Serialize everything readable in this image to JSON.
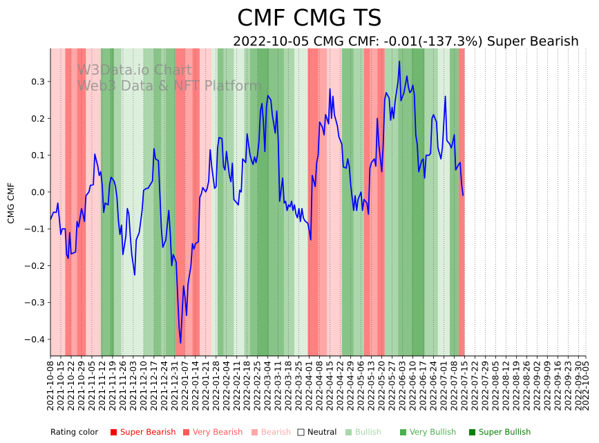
{
  "chart_data": {
    "type": "line",
    "title": "CMF CMG TS",
    "subtitle": "2022-10-05 CMG CMF: -0.01(-137.3%) Super Bearish",
    "ylabel": "CMG CMF",
    "watermark": [
      "W3Data.io Chart",
      "Web3 Data & NFT Platform"
    ],
    "ylim": [
      -0.445,
      0.39
    ],
    "yticks": [
      -0.4,
      -0.3,
      -0.2,
      -0.1,
      0.0,
      0.1,
      0.2,
      0.3
    ],
    "ytick_labels": [
      "−0.4",
      "−0.3",
      "−0.2",
      "−0.1",
      "0.0",
      "0.1",
      "0.2",
      "0.3"
    ],
    "x_start": "2021-10-08",
    "x_end": "2022-10-05",
    "xtick_labels": [
      "2021-10-08",
      "2021-10-15",
      "2021-10-22",
      "2021-10-29",
      "2021-11-05",
      "2021-11-12",
      "2021-11-19",
      "2021-11-26",
      "2021-12-03",
      "2021-12-10",
      "2021-12-17",
      "2021-12-24",
      "2021-12-31",
      "2022-01-07",
      "2022-01-14",
      "2022-01-21",
      "2022-01-28",
      "2022-02-04",
      "2022-02-11",
      "2022-02-18",
      "2022-02-25",
      "2022-03-04",
      "2022-03-11",
      "2022-03-18",
      "2022-03-25",
      "2022-04-01",
      "2022-04-08",
      "2022-04-15",
      "2022-04-22",
      "2022-04-29",
      "2022-05-06",
      "2022-05-13",
      "2022-05-20",
      "2022-05-27",
      "2022-06-03",
      "2022-06-10",
      "2022-06-17",
      "2022-06-24",
      "2022-07-01",
      "2022-07-08",
      "2022-07-15",
      "2022-07-22",
      "2022-07-29",
      "2022-08-05",
      "2022-08-12",
      "2022-08-19",
      "2022-08-26",
      "2022-09-02",
      "2022-09-09",
      "2022-09-16",
      "2022-09-23",
      "2022-09-30",
      "2022-10-05"
    ],
    "series": [
      {
        "name": "CMG CMF",
        "color": "#0000ff",
        "points": [
          [
            0,
            -0.075
          ],
          [
            2,
            -0.055
          ],
          [
            4,
            -0.055
          ],
          [
            5,
            -0.03
          ],
          [
            7,
            -0.115
          ],
          [
            8,
            -0.1
          ],
          [
            10,
            -0.1
          ],
          [
            11,
            -0.17
          ],
          [
            12,
            -0.18
          ],
          [
            13,
            -0.11
          ],
          [
            14,
            -0.168
          ],
          [
            17,
            -0.163
          ],
          [
            18,
            -0.08
          ],
          [
            19,
            -0.095
          ],
          [
            21,
            -0.045
          ],
          [
            22,
            -0.06
          ],
          [
            23,
            -0.08
          ],
          [
            24,
            -0.01
          ],
          [
            26,
            0.0
          ],
          [
            27,
            0.018
          ],
          [
            29,
            0.02
          ],
          [
            30,
            0.103
          ],
          [
            32,
            0.07
          ],
          [
            33,
            0.045
          ],
          [
            34,
            0.055
          ],
          [
            35,
            0.02
          ],
          [
            36,
            -0.055
          ],
          [
            37,
            -0.03
          ],
          [
            39,
            -0.035
          ],
          [
            40,
            0.02
          ],
          [
            41,
            0.04
          ],
          [
            43,
            0.03
          ],
          [
            44,
            0.015
          ],
          [
            45,
            -0.015
          ],
          [
            46,
            -0.08
          ],
          [
            47,
            -0.115
          ],
          [
            48,
            -0.09
          ],
          [
            49,
            -0.17
          ],
          [
            51,
            -0.12
          ],
          [
            52,
            -0.045
          ],
          [
            53,
            -0.06
          ],
          [
            54,
            -0.12
          ],
          [
            55,
            -0.17
          ],
          [
            57,
            -0.225
          ],
          [
            58,
            -0.13
          ],
          [
            60,
            -0.11
          ],
          [
            62,
            -0.05
          ],
          [
            63,
            0.005
          ],
          [
            65,
            0.01
          ],
          [
            66,
            0.01
          ],
          [
            69,
            0.03
          ],
          [
            70,
            0.118
          ],
          [
            71,
            0.09
          ],
          [
            73,
            0.085
          ],
          [
            75,
            -0.1
          ],
          [
            76,
            -0.15
          ],
          [
            78,
            -0.13
          ],
          [
            79,
            -0.09
          ],
          [
            80,
            -0.05
          ],
          [
            81,
            -0.11
          ],
          [
            82,
            -0.2
          ],
          [
            83,
            -0.17
          ],
          [
            85,
            -0.19
          ],
          [
            86,
            -0.28
          ],
          [
            87,
            -0.37
          ],
          [
            88,
            -0.41
          ],
          [
            90,
            -0.255
          ],
          [
            91,
            -0.285
          ],
          [
            92,
            -0.335
          ],
          [
            93,
            -0.25
          ],
          [
            95,
            -0.2
          ],
          [
            96,
            -0.14
          ],
          [
            97,
            -0.155
          ],
          [
            98,
            -0.14
          ],
          [
            100,
            -0.135
          ],
          [
            101,
            -0.015
          ],
          [
            102,
            -0.005
          ],
          [
            103,
            0.012
          ],
          [
            105,
            0.0
          ],
          [
            106,
            0.01
          ],
          [
            107,
            0.03
          ],
          [
            108,
            0.115
          ],
          [
            109,
            0.07
          ],
          [
            111,
            0.01
          ],
          [
            112,
            0.015
          ],
          [
            113,
            0.12
          ],
          [
            114,
            0.148
          ],
          [
            116,
            0.145
          ],
          [
            117,
            0.07
          ],
          [
            118,
            0.06
          ],
          [
            119,
            0.11
          ],
          [
            121,
            0.045
          ],
          [
            122,
            0.028
          ],
          [
            123,
            0.078
          ],
          [
            124,
            -0.02
          ],
          [
            126,
            -0.03
          ],
          [
            127,
            -0.035
          ],
          [
            128,
            0.005
          ],
          [
            129,
            0.0
          ],
          [
            130,
            0.09
          ],
          [
            132,
            0.08
          ],
          [
            133,
            0.158
          ],
          [
            135,
            0.1
          ],
          [
            136,
            0.085
          ],
          [
            137,
            0.075
          ],
          [
            138,
            0.095
          ],
          [
            139,
            0.08
          ],
          [
            140,
            0.1
          ],
          [
            141,
            0.14
          ],
          [
            142,
            0.22
          ],
          [
            143,
            0.24
          ],
          [
            144,
            0.19
          ],
          [
            145,
            0.11
          ],
          [
            146,
            0.23
          ],
          [
            147,
            0.262
          ],
          [
            149,
            0.25
          ],
          [
            150,
            0.21
          ],
          [
            152,
            0.16
          ],
          [
            153,
            0.22
          ],
          [
            154,
            0.14
          ],
          [
            155,
            -0.025
          ],
          [
            157,
            0.038
          ],
          [
            158,
            -0.03
          ],
          [
            159,
            -0.025
          ],
          [
            160,
            -0.05
          ],
          [
            161,
            -0.035
          ],
          [
            162,
            -0.04
          ],
          [
            163,
            -0.025
          ],
          [
            164,
            -0.05
          ],
          [
            165,
            -0.035
          ],
          [
            166,
            -0.06
          ],
          [
            167,
            -0.07
          ],
          [
            168,
            -0.045
          ],
          [
            169,
            -0.08
          ],
          [
            170,
            -0.045
          ],
          [
            171,
            -0.07
          ],
          [
            172,
            -0.078
          ],
          [
            174,
            -0.085
          ],
          [
            175,
            -0.105
          ],
          [
            176,
            -0.13
          ],
          [
            177,
            0.045
          ],
          [
            178,
            0.03
          ],
          [
            179,
            0.015
          ],
          [
            180,
            0.08
          ],
          [
            181,
            0.1
          ],
          [
            182,
            0.19
          ],
          [
            184,
            0.175
          ],
          [
            185,
            0.155
          ],
          [
            186,
            0.21
          ],
          [
            187,
            0.2
          ],
          [
            188,
            0.185
          ],
          [
            189,
            0.28
          ],
          [
            190,
            0.2
          ],
          [
            191,
            0.26
          ],
          [
            192,
            0.21
          ],
          [
            194,
            0.18
          ],
          [
            195,
            0.15
          ],
          [
            197,
            0.13
          ],
          [
            198,
            0.068
          ],
          [
            200,
            0.065
          ],
          [
            201,
            0.09
          ],
          [
            202,
            0.07
          ],
          [
            203,
            0.02
          ],
          [
            204,
            -0.015
          ],
          [
            205,
            -0.05
          ],
          [
            206,
            -0.01
          ],
          [
            207,
            -0.05
          ],
          [
            208,
            -0.02
          ],
          [
            210,
            0.0
          ],
          [
            211,
            -0.05
          ],
          [
            212,
            -0.02
          ],
          [
            214,
            -0.03
          ],
          [
            215,
            -0.06
          ],
          [
            216,
            0.065
          ],
          [
            217,
            0.08
          ],
          [
            219,
            0.09
          ],
          [
            220,
            0.07
          ],
          [
            221,
            0.2
          ],
          [
            222,
            0.13
          ],
          [
            224,
            0.055
          ],
          [
            225,
            0.13
          ],
          [
            226,
            0.25
          ],
          [
            227,
            0.27
          ],
          [
            229,
            0.255
          ],
          [
            230,
            0.195
          ],
          [
            231,
            0.23
          ],
          [
            232,
            0.2
          ],
          [
            233,
            0.245
          ],
          [
            235,
            0.3
          ],
          [
            236,
            0.355
          ],
          [
            237,
            0.248
          ],
          [
            239,
            0.27
          ],
          [
            241,
            0.315
          ],
          [
            242,
            0.285
          ],
          [
            243,
            0.27
          ],
          [
            244,
            0.275
          ],
          [
            245,
            0.29
          ],
          [
            246,
            0.265
          ],
          [
            247,
            0.155
          ],
          [
            248,
            0.13
          ],
          [
            249,
            0.055
          ],
          [
            251,
            0.085
          ],
          [
            252,
            0.09
          ],
          [
            253,
            0.038
          ],
          [
            254,
            0.1
          ],
          [
            256,
            0.1
          ],
          [
            257,
            0.105
          ],
          [
            258,
            0.2
          ],
          [
            259,
            0.21
          ],
          [
            261,
            0.19
          ],
          [
            262,
            0.12
          ],
          [
            264,
            0.09
          ],
          [
            265,
            0.12
          ],
          [
            267,
            0.26
          ],
          [
            268,
            0.14
          ],
          [
            270,
            0.13
          ],
          [
            271,
            0.12
          ],
          [
            272,
            0.135
          ],
          [
            273,
            0.155
          ],
          [
            274,
            0.06
          ],
          [
            276,
            0.075
          ],
          [
            277,
            0.08
          ],
          [
            278,
            0.02
          ],
          [
            279,
            -0.01
          ]
        ]
      }
    ],
    "bands": [
      {
        "from": 0,
        "to": 10,
        "rating": "Bearish"
      },
      {
        "from": 10,
        "to": 14,
        "rating": "Super Bearish"
      },
      {
        "from": 14,
        "to": 18,
        "rating": "Very Bearish"
      },
      {
        "from": 18,
        "to": 24,
        "rating": "Super Bearish"
      },
      {
        "from": 24,
        "to": 34,
        "rating": "Bearish"
      },
      {
        "from": 34,
        "to": 40,
        "rating": "Very Bullish"
      },
      {
        "from": 40,
        "to": 43,
        "rating": "Super Bullish"
      },
      {
        "from": 43,
        "to": 48,
        "rating": "Bullish"
      },
      {
        "from": 48,
        "to": 63,
        "rating": "Neutral"
      },
      {
        "from": 63,
        "to": 70,
        "rating": "Bullish"
      },
      {
        "from": 70,
        "to": 75,
        "rating": "Very Bullish"
      },
      {
        "from": 75,
        "to": 78,
        "rating": "Bullish"
      },
      {
        "from": 78,
        "to": 85,
        "rating": "Very Bullish"
      },
      {
        "from": 85,
        "to": 91,
        "rating": "Super Bearish"
      },
      {
        "from": 91,
        "to": 96,
        "rating": "Very Bearish"
      },
      {
        "from": 96,
        "to": 101,
        "rating": "Super Bearish"
      },
      {
        "from": 101,
        "to": 109,
        "rating": "Bearish"
      },
      {
        "from": 109,
        "to": 113,
        "rating": "Neutral"
      },
      {
        "from": 113,
        "to": 117,
        "rating": "Very Bullish"
      },
      {
        "from": 117,
        "to": 124,
        "rating": "Bullish"
      },
      {
        "from": 124,
        "to": 131,
        "rating": "Neutral"
      },
      {
        "from": 131,
        "to": 135,
        "rating": "Bullish"
      },
      {
        "from": 135,
        "to": 140,
        "rating": "Very Bullish"
      },
      {
        "from": 140,
        "to": 148,
        "rating": "Super Bullish"
      },
      {
        "from": 148,
        "to": 158,
        "rating": "Very Bullish"
      },
      {
        "from": 158,
        "to": 165,
        "rating": "Bullish"
      },
      {
        "from": 165,
        "to": 174,
        "rating": "Neutral"
      },
      {
        "from": 174,
        "to": 181,
        "rating": "Super Bearish"
      },
      {
        "from": 181,
        "to": 187,
        "rating": "Very Bearish"
      },
      {
        "from": 187,
        "to": 197,
        "rating": "Bearish"
      },
      {
        "from": 197,
        "to": 205,
        "rating": "Very Bullish"
      },
      {
        "from": 205,
        "to": 212,
        "rating": "Bullish"
      },
      {
        "from": 212,
        "to": 216,
        "rating": "Super Bearish"
      },
      {
        "from": 216,
        "to": 221,
        "rating": "Very Bearish"
      },
      {
        "from": 221,
        "to": 226,
        "rating": "Super Bearish"
      },
      {
        "from": 226,
        "to": 235,
        "rating": "Bullish"
      },
      {
        "from": 235,
        "to": 244,
        "rating": "Very Bullish"
      },
      {
        "from": 244,
        "to": 253,
        "rating": "Super Bullish"
      },
      {
        "from": 253,
        "to": 262,
        "rating": "Bullish"
      },
      {
        "from": 262,
        "to": 270,
        "rating": "Neutral"
      },
      {
        "from": 270,
        "to": 276,
        "rating": "Very Bullish"
      },
      {
        "from": 276,
        "to": 280,
        "rating": "Super Bearish"
      }
    ],
    "legend": {
      "placement": "bottom",
      "title": "Rating color",
      "items": [
        {
          "label": "Super Bearish",
          "color": "#ff0000",
          "swatch": "#ff0000"
        },
        {
          "label": "Very Bearish",
          "color": "#ff5a5a",
          "swatch": "#ff5a5a"
        },
        {
          "label": "Bearish",
          "color": "#ffa8a8",
          "swatch": "#ffa8a8"
        },
        {
          "label": "Neutral",
          "color": "#000000",
          "swatch": "#ffffff"
        },
        {
          "label": "Bullish",
          "color": "#a8d8a8",
          "swatch": "#a8d8a8"
        },
        {
          "label": "Very Bullish",
          "color": "#4caf50",
          "swatch": "#4caf50"
        },
        {
          "label": "Super Bullish",
          "color": "#008000",
          "swatch": "#008000"
        }
      ]
    },
    "rating_colors": {
      "Super Bearish": "#ff8080",
      "Very Bearish": "#ffa6a6",
      "Bearish": "#ffd0d0",
      "Neutral": "#dcefdc",
      "Bullish": "#acd6ac",
      "Very Bullish": "#88c488",
      "Super Bullish": "#70b870"
    }
  }
}
